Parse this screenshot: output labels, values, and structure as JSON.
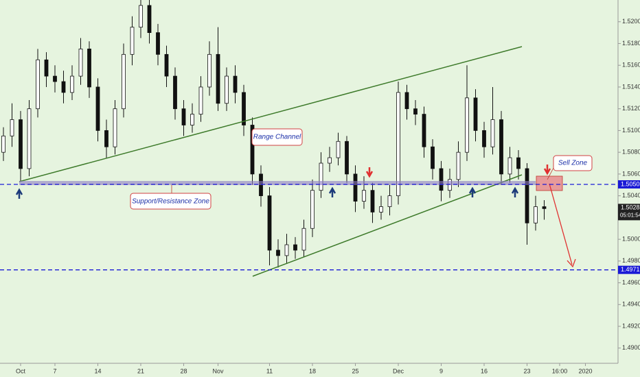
{
  "chart_data": {
    "type": "candlestick",
    "ylim": [
      1.4886,
      1.522
    ],
    "yticks": [
      {
        "value": 1.52,
        "label": "1.52000"
      },
      {
        "value": 1.518,
        "label": "1.51800"
      },
      {
        "value": 1.516,
        "label": "1.51600"
      },
      {
        "value": 1.514,
        "label": "1.51400"
      },
      {
        "value": 1.512,
        "label": "1.51200"
      },
      {
        "value": 1.51,
        "label": "1.51000"
      },
      {
        "value": 1.508,
        "label": "1.50800"
      },
      {
        "value": 1.506,
        "label": "1.50600"
      },
      {
        "value": 1.504,
        "label": "1.50400"
      },
      {
        "value": 1.5,
        "label": "1.50000"
      },
      {
        "value": 1.498,
        "label": "1.49800"
      },
      {
        "value": 1.496,
        "label": "1.49600"
      },
      {
        "value": 1.494,
        "label": "1.49400"
      },
      {
        "value": 1.492,
        "label": "1.49200"
      },
      {
        "value": 1.49,
        "label": "1.49000"
      }
    ],
    "xlim": [
      -2.4,
      69.6
    ],
    "xticks": [
      {
        "value": 0,
        "label": "Oct"
      },
      {
        "value": 4,
        "label": "7"
      },
      {
        "value": 9,
        "label": "14"
      },
      {
        "value": 14,
        "label": "21"
      },
      {
        "value": 19,
        "label": "28"
      },
      {
        "value": 23,
        "label": "Nov"
      },
      {
        "value": 29,
        "label": "11"
      },
      {
        "value": 34,
        "label": "18"
      },
      {
        "value": 39,
        "label": "25"
      },
      {
        "value": 44,
        "label": "Dec"
      },
      {
        "value": 49,
        "label": "9"
      },
      {
        "value": 54,
        "label": "16"
      },
      {
        "value": 59,
        "label": "23"
      },
      {
        "value": 62.8,
        "label": "16:00"
      },
      {
        "value": 65.8,
        "label": "2020"
      }
    ],
    "grid": false,
    "up_color": "#ffffff",
    "down_color": "#111111",
    "x": [
      -2,
      -1,
      0,
      1,
      2,
      3,
      4,
      5,
      6,
      7,
      8,
      9,
      10,
      11,
      12,
      13,
      14,
      15,
      16,
      17,
      18,
      19,
      20,
      21,
      22,
      23,
      24,
      25,
      26,
      27,
      28,
      29,
      30,
      31,
      32,
      33,
      34,
      35,
      36,
      37,
      38,
      39,
      40,
      41,
      42,
      43,
      44,
      45,
      46,
      47,
      48,
      49,
      50,
      51,
      52,
      53,
      54,
      55,
      56,
      57,
      58,
      59,
      60,
      61
    ],
    "candles": {
      "open": [
        1.508,
        1.5095,
        1.511,
        1.5065,
        1.512,
        1.5165,
        1.515,
        1.5145,
        1.5135,
        1.515,
        1.5175,
        1.514,
        1.51,
        1.5085,
        1.512,
        1.517,
        1.5195,
        1.5215,
        1.519,
        1.517,
        1.515,
        1.512,
        1.5105,
        1.5115,
        1.514,
        1.517,
        1.5125,
        1.515,
        1.5135,
        1.5105,
        1.506,
        1.504,
        1.499,
        1.4985,
        1.4995,
        1.499,
        1.501,
        1.5045,
        1.507,
        1.5075,
        1.509,
        1.506,
        1.5035,
        1.5045,
        1.5025,
        1.503,
        1.504,
        1.5135,
        1.512,
        1.5115,
        1.5085,
        1.5065,
        1.5045,
        1.5055,
        1.508,
        1.513,
        1.51,
        1.5085,
        1.511,
        1.506,
        1.5075,
        1.5065,
        1.5015,
        1.503
      ],
      "high": [
        1.5103,
        1.5125,
        1.5118,
        1.5128,
        1.5175,
        1.5172,
        1.516,
        1.5155,
        1.516,
        1.5185,
        1.5182,
        1.5148,
        1.511,
        1.5128,
        1.518,
        1.5205,
        1.5222,
        1.522,
        1.5198,
        1.5178,
        1.5158,
        1.5128,
        1.5125,
        1.515,
        1.5182,
        1.5195,
        1.5158,
        1.516,
        1.5142,
        1.5112,
        1.5068,
        1.5048,
        1.5,
        1.5005,
        1.5002,
        1.5018,
        1.5055,
        1.508,
        1.5085,
        1.5098,
        1.5095,
        1.5068,
        1.5058,
        1.5052,
        1.504,
        1.505,
        1.5145,
        1.5142,
        1.5128,
        1.5122,
        1.5092,
        1.5072,
        1.5065,
        1.509,
        1.516,
        1.5138,
        1.5108,
        1.514,
        1.5118,
        1.5085,
        1.5082,
        1.507,
        1.504,
        1.5036
      ],
      "low": [
        1.5072,
        1.5085,
        1.5053,
        1.5058,
        1.5112,
        1.514,
        1.5135,
        1.5125,
        1.5128,
        1.5142,
        1.513,
        1.509,
        1.5075,
        1.5078,
        1.5112,
        1.516,
        1.5185,
        1.518,
        1.516,
        1.514,
        1.511,
        1.5095,
        1.5098,
        1.5108,
        1.5132,
        1.5118,
        1.5118,
        1.5125,
        1.5095,
        1.505,
        1.503,
        1.4976,
        1.4974,
        1.4978,
        1.4982,
        1.4984,
        1.5002,
        1.5038,
        1.5062,
        1.5068,
        1.5052,
        1.5025,
        1.5028,
        1.5015,
        1.5018,
        1.5022,
        1.5032,
        1.511,
        1.5105,
        1.5075,
        1.5055,
        1.5035,
        1.5038,
        1.5048,
        1.5072,
        1.509,
        1.5075,
        1.5078,
        1.505,
        1.5052,
        1.5055,
        1.4995,
        1.5008,
        1.5018
      ],
      "close": [
        1.5095,
        1.511,
        1.5065,
        1.512,
        1.5165,
        1.515,
        1.5145,
        1.5135,
        1.515,
        1.5175,
        1.514,
        1.51,
        1.5085,
        1.512,
        1.517,
        1.5195,
        1.5215,
        1.519,
        1.517,
        1.515,
        1.512,
        1.5105,
        1.5115,
        1.514,
        1.517,
        1.5125,
        1.515,
        1.5135,
        1.5105,
        1.506,
        1.504,
        1.499,
        1.4985,
        1.4995,
        1.499,
        1.501,
        1.5045,
        1.507,
        1.5075,
        1.509,
        1.506,
        1.5035,
        1.5045,
        1.5025,
        1.503,
        1.504,
        1.5135,
        1.512,
        1.5115,
        1.5085,
        1.5065,
        1.5045,
        1.5055,
        1.508,
        1.513,
        1.51,
        1.5085,
        1.511,
        1.506,
        1.5075,
        1.5065,
        1.5015,
        1.503,
        1.50282
      ]
    },
    "hlines": [
      {
        "value": 1.50505,
        "label": "1.50505",
        "color": "#1a1ad6"
      },
      {
        "value": 1.49719,
        "label": "1.49719",
        "color": "#1a1ad6"
      }
    ],
    "last_price": {
      "value": 1.50282,
      "label": "1.50282"
    },
    "countdown": "05:01:54",
    "annotations": [
      "Range Channel",
      "Support/Resistance Zone",
      "Sell Zone"
    ]
  }
}
